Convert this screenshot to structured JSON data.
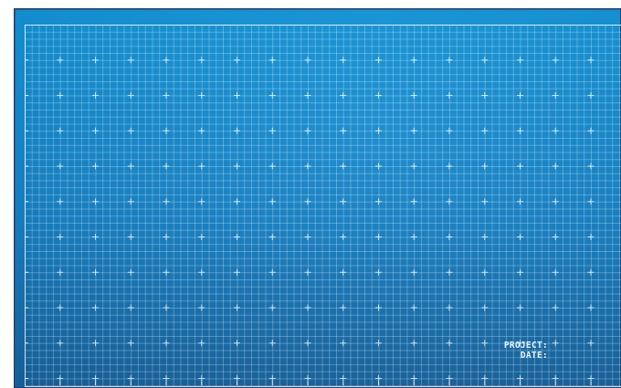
{
  "canvas": {
    "background_color": "#1380c4",
    "grid_color": "#ffffff"
  },
  "title_block": {
    "project_label": "PROJECT:",
    "project_value": "",
    "date_label": "DATE:",
    "date_value": ""
  }
}
